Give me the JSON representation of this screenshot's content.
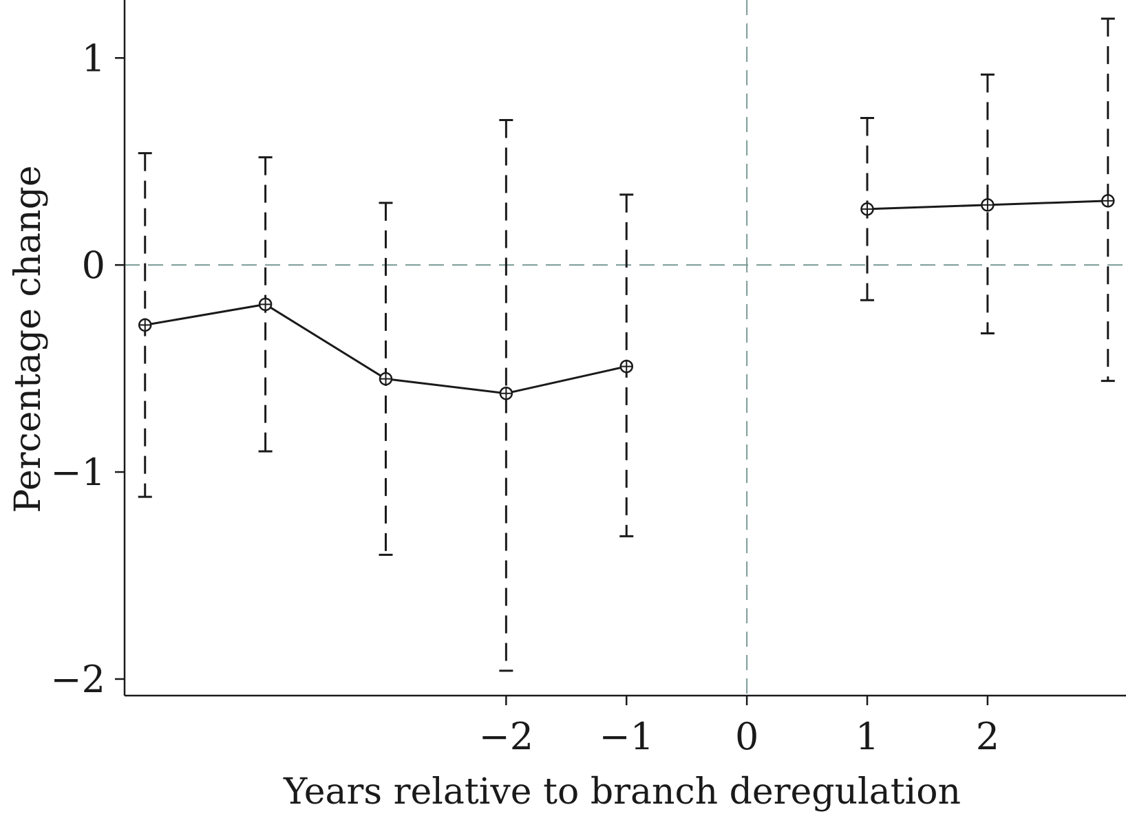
{
  "chart_data": {
    "type": "line",
    "xlabel": "Years relative to branch deregulation",
    "ylabel": "Percentage change",
    "x_tick_labels": [
      "−2",
      "−1",
      "0",
      "1",
      "2"
    ],
    "x_ticks": [
      -2,
      -1,
      0,
      1,
      2
    ],
    "y_tick_labels": [
      "1",
      "0",
      "−1",
      "−2"
    ],
    "y_ticks": [
      1,
      0,
      -1,
      -2
    ],
    "xlim": [
      -5.17,
      3.15
    ],
    "ylim": [
      -2.08,
      1.28
    ],
    "reference_lines": {
      "x": 0,
      "y": 0,
      "style": "dashed",
      "color": "#7a9a96"
    },
    "series": [
      {
        "segments": [
          {
            "x": [
              -5,
              -4,
              -3,
              -2,
              -1
            ],
            "y": [
              -0.29,
              -0.19,
              -0.55,
              -0.62,
              -0.49
            ]
          },
          {
            "x": [
              1,
              2,
              3
            ],
            "y": [
              0.27,
              0.29,
              0.31
            ]
          }
        ],
        "points": [
          {
            "x": -5,
            "y": -0.29,
            "lo": -1.12,
            "hi": 0.54
          },
          {
            "x": -4,
            "y": -0.19,
            "lo": -0.9,
            "hi": 0.52
          },
          {
            "x": -3,
            "y": -0.55,
            "lo": -1.4,
            "hi": 0.3
          },
          {
            "x": -2,
            "y": -0.62,
            "lo": -1.96,
            "hi": 0.7
          },
          {
            "x": -1,
            "y": -0.49,
            "lo": -1.31,
            "hi": 0.34
          },
          {
            "x": 1,
            "y": 0.27,
            "lo": -0.17,
            "hi": 0.71
          },
          {
            "x": 2,
            "y": 0.29,
            "lo": -0.33,
            "hi": 0.92
          },
          {
            "x": 3,
            "y": 0.31,
            "lo": -0.56,
            "hi": 1.19
          }
        ]
      }
    ],
    "grid": false,
    "colors": {
      "line": "#1a1a1a",
      "reference": "#7a9a96"
    }
  }
}
